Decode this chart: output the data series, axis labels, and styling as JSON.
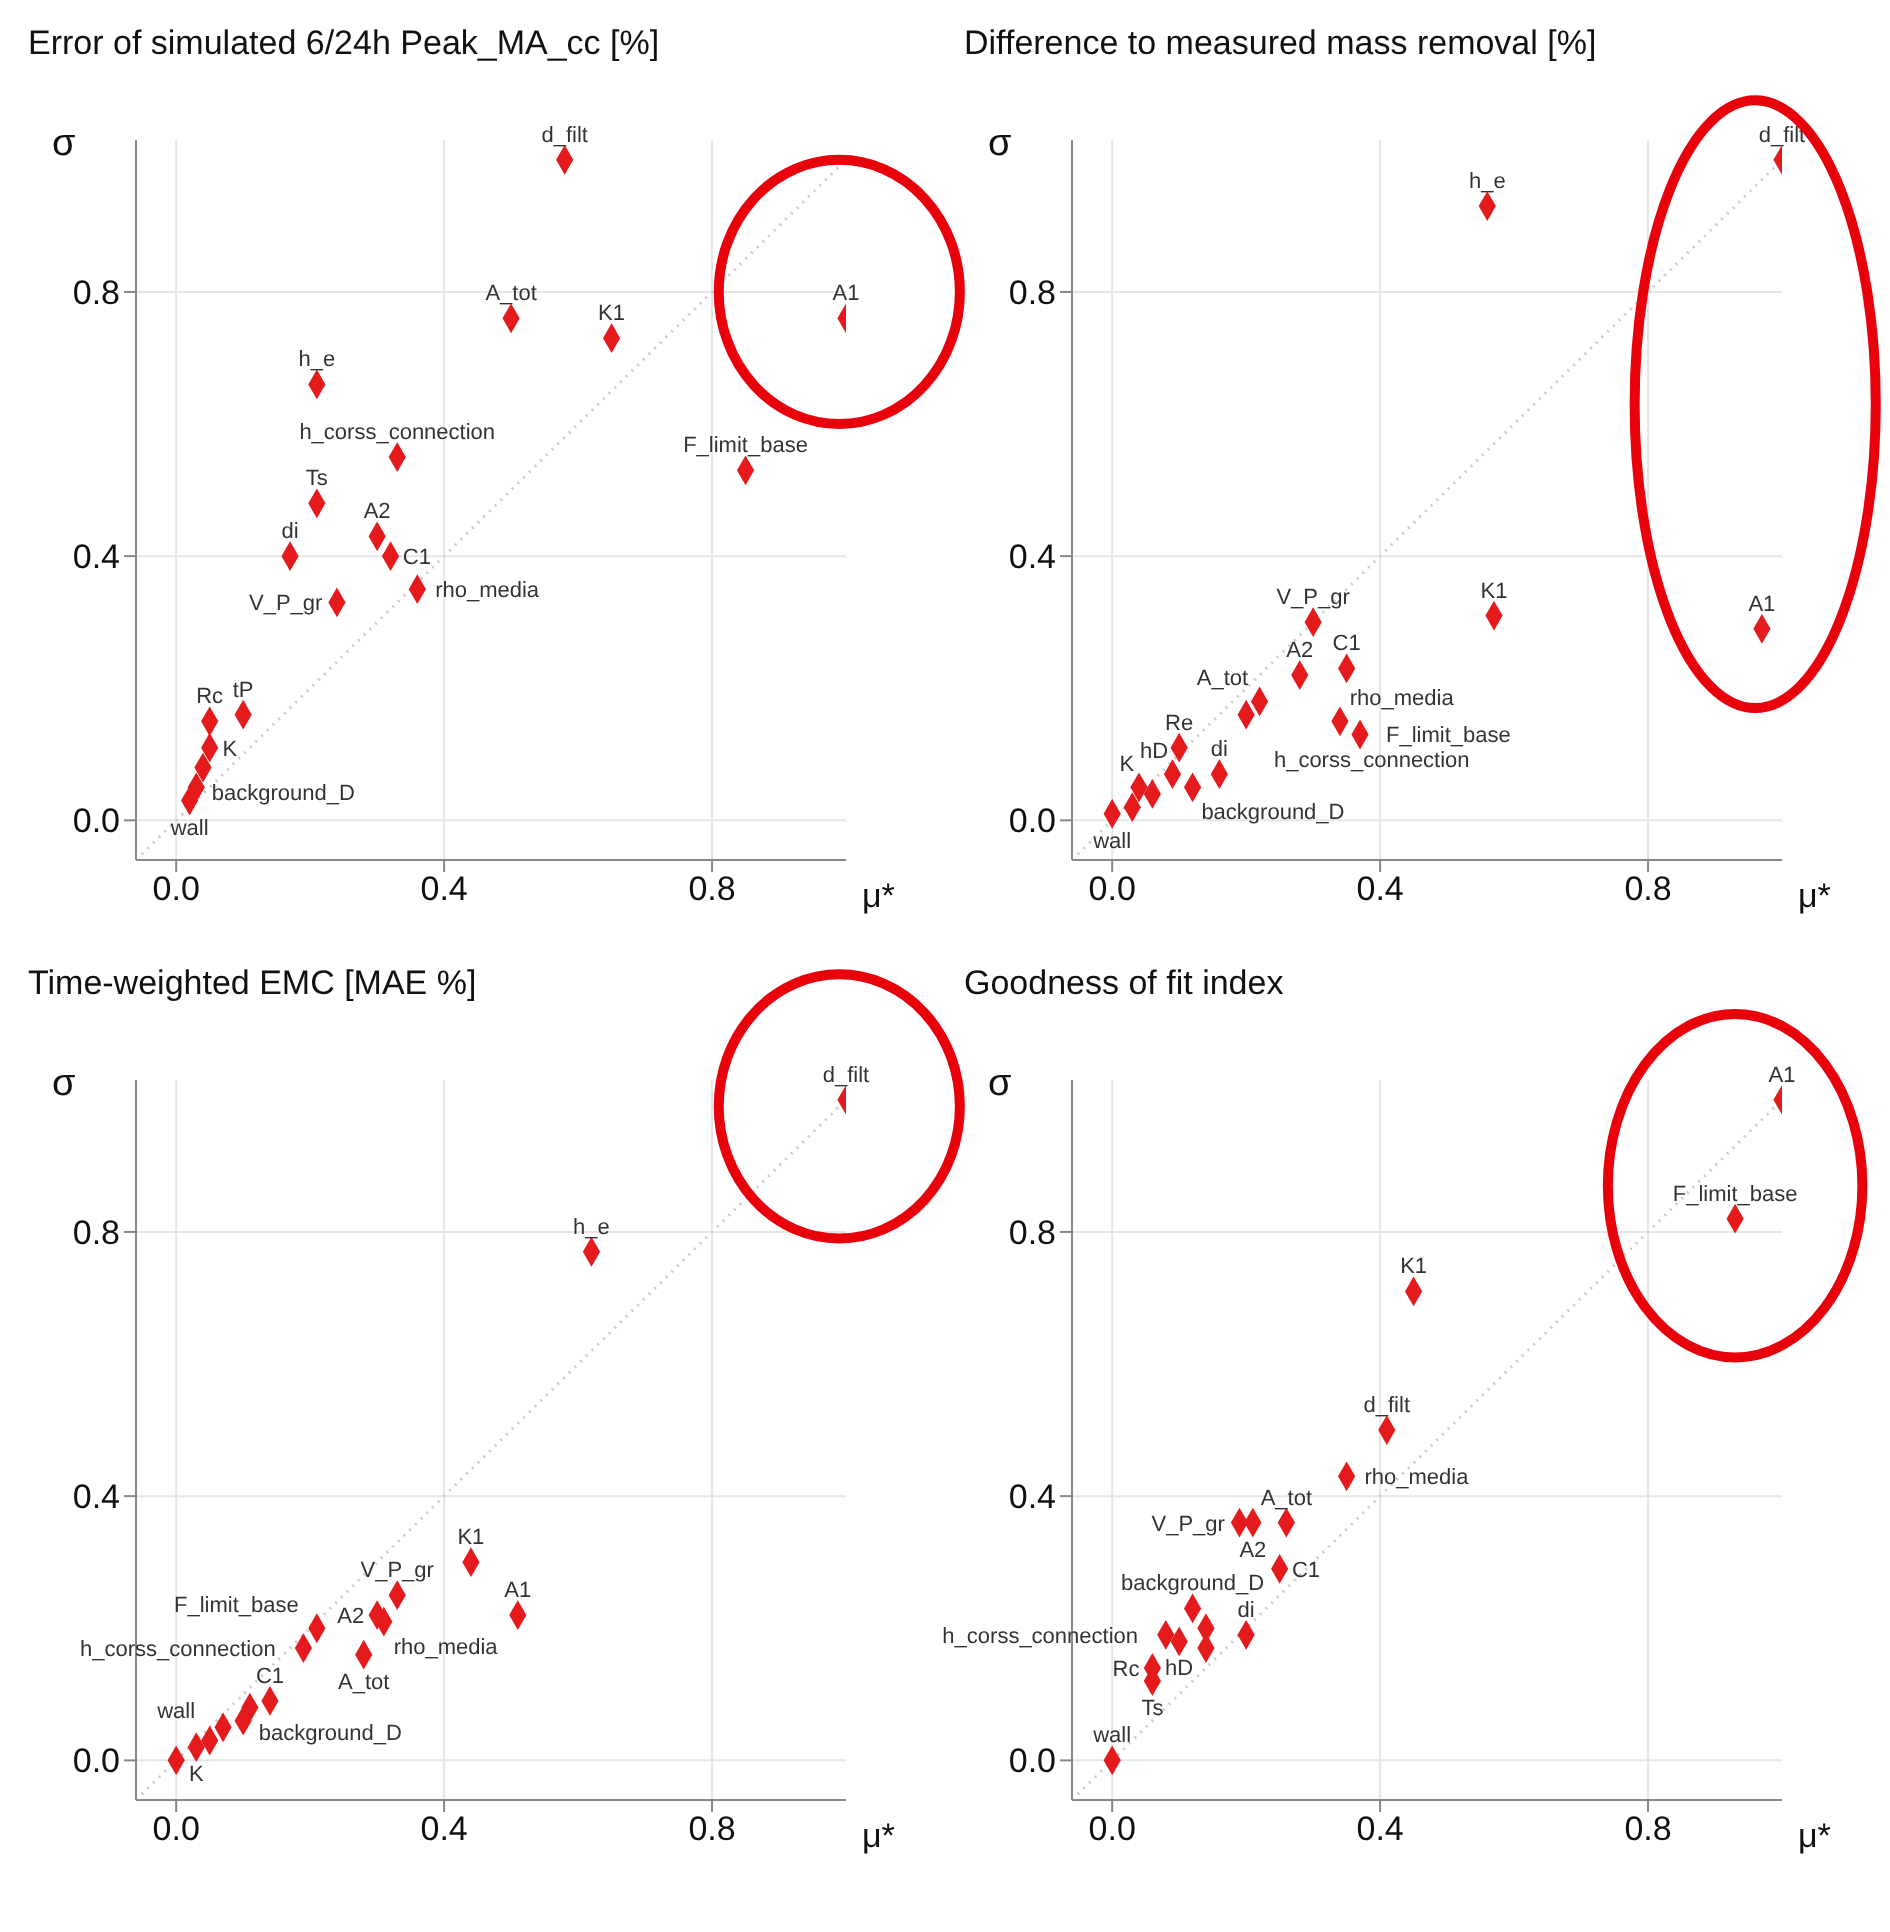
{
  "chart_data": [
    {
      "type": "scatter",
      "title": "Error of simulated 6/24h Peak_MA_cc [%]",
      "xlabel": "μ*",
      "ylabel": "σ",
      "xlim": [
        -0.06,
        1.0
      ],
      "ylim": [
        -0.06,
        1.03
      ],
      "xticks": [
        {
          "value": 0,
          "label": "0.0"
        },
        {
          "value": 0.4,
          "label": "0.4"
        },
        {
          "value": 0.8,
          "label": "0.8"
        }
      ],
      "yticks": [
        {
          "value": 0,
          "label": "0.0"
        },
        {
          "value": 0.4,
          "label": "0.4"
        },
        {
          "value": 0.8,
          "label": "0.8"
        }
      ],
      "grid": true,
      "marker": "diamond",
      "series": [
        {
          "type": "scatter",
          "color": "#e41a1c",
          "x": [
            0.58,
            0.5,
            0.65,
            1.0,
            0.85,
            0.21,
            0.33,
            0.21,
            0.3,
            0.32,
            0.17,
            0.36,
            0.24,
            0.05,
            0.1,
            0.05,
            0.04,
            0.03,
            0.02
          ],
          "values": [
            1.0,
            0.76,
            0.73,
            0.76,
            0.53,
            0.66,
            0.55,
            0.48,
            0.43,
            0.4,
            0.4,
            0.35,
            0.33,
            0.15,
            0.16,
            0.11,
            0.08,
            0.05,
            0.03
          ]
        },
        {
          "type": "line",
          "color": "#cccccc",
          "line_style": "dotted",
          "marker": "none",
          "x": [
            -0.06,
            1.0
          ],
          "values": [
            -0.06,
            1.0
          ]
        }
      ],
      "annotations": [
        {
          "text": "d_filt",
          "x": 0.58,
          "y": 1.0
        },
        {
          "text": "A_tot",
          "x": 0.5,
          "y": 0.76
        },
        {
          "text": "K1",
          "x": 0.65,
          "y": 0.73
        },
        {
          "text": "A1",
          "x": 1.0,
          "y": 0.76
        },
        {
          "text": "F_limit_base",
          "x": 0.85,
          "y": 0.53
        },
        {
          "text": "h_e",
          "x": 0.21,
          "y": 0.66
        },
        {
          "text": "h_corss_connection",
          "x": 0.33,
          "y": 0.55
        },
        {
          "text": "Ts",
          "x": 0.21,
          "y": 0.48
        },
        {
          "text": "A2",
          "x": 0.3,
          "y": 0.43
        },
        {
          "text": "C1",
          "x": 0.32,
          "y": 0.4
        },
        {
          "text": "di",
          "x": 0.17,
          "y": 0.4
        },
        {
          "text": "rho_media",
          "x": 0.36,
          "y": 0.35
        },
        {
          "text": "V_P_gr",
          "x": 0.24,
          "y": 0.33
        },
        {
          "text": "Rc",
          "x": 0.05,
          "y": 0.15
        },
        {
          "text": "tP",
          "x": 0.1,
          "y": 0.16
        },
        {
          "text": "K",
          "x": 0.05,
          "y": 0.11
        },
        {
          "text": "background_D",
          "x": 0.04,
          "y": 0.08
        },
        {
          "text": "wall",
          "x": 0.02,
          "y": 0.03
        }
      ]
    },
    {
      "type": "scatter",
      "title": "Difference to measured mass removal [%]",
      "xlabel": "μ*",
      "ylabel": "σ",
      "xlim": [
        -0.06,
        1.0
      ],
      "ylim": [
        -0.06,
        1.03
      ],
      "xticks": [
        {
          "value": 0,
          "label": "0.0"
        },
        {
          "value": 0.4,
          "label": "0.4"
        },
        {
          "value": 0.8,
          "label": "0.8"
        }
      ],
      "yticks": [
        {
          "value": 0,
          "label": "0.0"
        },
        {
          "value": 0.4,
          "label": "0.4"
        },
        {
          "value": 0.8,
          "label": "0.8"
        }
      ],
      "grid": true,
      "marker": "diamond",
      "series": [
        {
          "type": "scatter",
          "color": "#e41a1c",
          "x": [
            1.0,
            0.56,
            0.57,
            0.97,
            0.3,
            0.35,
            0.28,
            0.22,
            0.2,
            0.34,
            0.37,
            0.1,
            0.16,
            0.09,
            0.12,
            0.06,
            0.04,
            0.03,
            0.0
          ],
          "values": [
            1.0,
            0.93,
            0.31,
            0.29,
            0.3,
            0.23,
            0.22,
            0.18,
            0.16,
            0.15,
            0.13,
            0.11,
            0.07,
            0.07,
            0.05,
            0.04,
            0.05,
            0.02,
            0.01
          ]
        },
        {
          "type": "line",
          "color": "#cccccc",
          "line_style": "dotted",
          "marker": "none",
          "x": [
            -0.06,
            1.0
          ],
          "values": [
            -0.06,
            1.0
          ]
        }
      ],
      "annotations": [
        {
          "text": "d_filt",
          "x": 1.0,
          "y": 1.0
        },
        {
          "text": "h_e",
          "x": 0.56,
          "y": 0.93
        },
        {
          "text": "K1",
          "x": 0.57,
          "y": 0.31
        },
        {
          "text": "A1",
          "x": 0.97,
          "y": 0.29
        },
        {
          "text": "V_P_gr",
          "x": 0.3,
          "y": 0.3
        },
        {
          "text": "C1",
          "x": 0.35,
          "y": 0.23
        },
        {
          "text": "A2",
          "x": 0.28,
          "y": 0.22
        },
        {
          "text": "A_tot",
          "x": 0.22,
          "y": 0.18
        },
        {
          "text": "h_corss_connection",
          "x": 0.2,
          "y": 0.16
        },
        {
          "text": "rho_media",
          "x": 0.34,
          "y": 0.15
        },
        {
          "text": "F_limit_base",
          "x": 0.37,
          "y": 0.13
        },
        {
          "text": "Re",
          "x": 0.1,
          "y": 0.11
        },
        {
          "text": "di",
          "x": 0.16,
          "y": 0.07
        },
        {
          "text": "hD",
          "x": 0.09,
          "y": 0.07
        },
        {
          "text": "background_D",
          "x": 0.12,
          "y": 0.05
        },
        {
          "text": "K",
          "x": 0.04,
          "y": 0.05
        },
        {
          "text": "wall",
          "x": 0.0,
          "y": 0.01
        }
      ]
    },
    {
      "type": "scatter",
      "title": "Time-weighted EMC [MAE %]",
      "xlabel": "μ*",
      "ylabel": "σ",
      "xlim": [
        -0.06,
        1.0
      ],
      "ylim": [
        -0.06,
        1.03
      ],
      "xticks": [
        {
          "value": 0,
          "label": "0.0"
        },
        {
          "value": 0.4,
          "label": "0.4"
        },
        {
          "value": 0.8,
          "label": "0.8"
        }
      ],
      "yticks": [
        {
          "value": 0,
          "label": "0.0"
        },
        {
          "value": 0.4,
          "label": "0.4"
        },
        {
          "value": 0.8,
          "label": "0.8"
        }
      ],
      "grid": true,
      "marker": "diamond",
      "series": [
        {
          "type": "scatter",
          "color": "#e41a1c",
          "x": [
            1.0,
            0.62,
            0.44,
            0.51,
            0.33,
            0.31,
            0.3,
            0.28,
            0.21,
            0.19,
            0.14,
            0.11,
            0.1,
            0.07,
            0.05,
            0.03,
            0.0
          ],
          "values": [
            1.0,
            0.77,
            0.3,
            0.22,
            0.25,
            0.21,
            0.22,
            0.16,
            0.2,
            0.17,
            0.09,
            0.08,
            0.06,
            0.05,
            0.03,
            0.02,
            0.0
          ]
        },
        {
          "type": "line",
          "color": "#cccccc",
          "line_style": "dotted",
          "marker": "none",
          "x": [
            -0.06,
            1.0
          ],
          "values": [
            -0.06,
            1.0
          ]
        }
      ],
      "annotations": [
        {
          "text": "d_filt",
          "x": 1.0,
          "y": 1.0
        },
        {
          "text": "h_e",
          "x": 0.62,
          "y": 0.77
        },
        {
          "text": "K1",
          "x": 0.44,
          "y": 0.3
        },
        {
          "text": "A1",
          "x": 0.51,
          "y": 0.22
        },
        {
          "text": "V_P_gr",
          "x": 0.33,
          "y": 0.25
        },
        {
          "text": "rho_media",
          "x": 0.31,
          "y": 0.21
        },
        {
          "text": "A2",
          "x": 0.3,
          "y": 0.22
        },
        {
          "text": "A_tot",
          "x": 0.28,
          "y": 0.16
        },
        {
          "text": "F_limit_base",
          "x": 0.21,
          "y": 0.2
        },
        {
          "text": "h_corss_connection",
          "x": 0.19,
          "y": 0.17
        },
        {
          "text": "C1",
          "x": 0.14,
          "y": 0.09
        },
        {
          "text": "background_D",
          "x": 0.11,
          "y": 0.08
        },
        {
          "text": "K",
          "x": 0.03,
          "y": 0.02
        },
        {
          "text": "wall",
          "x": 0.0,
          "y": 0.0
        }
      ]
    },
    {
      "type": "scatter",
      "title": "Goodness of fit index",
      "xlabel": "μ*",
      "ylabel": "σ",
      "xlim": [
        -0.06,
        1.0
      ],
      "ylim": [
        -0.06,
        1.03
      ],
      "xticks": [
        {
          "value": 0,
          "label": "0.0"
        },
        {
          "value": 0.4,
          "label": "0.4"
        },
        {
          "value": 0.8,
          "label": "0.8"
        }
      ],
      "yticks": [
        {
          "value": 0,
          "label": "0.0"
        },
        {
          "value": 0.4,
          "label": "0.4"
        },
        {
          "value": 0.8,
          "label": "0.8"
        }
      ],
      "grid": true,
      "marker": "diamond",
      "series": [
        {
          "type": "scatter",
          "color": "#e41a1c",
          "x": [
            1.0,
            0.93,
            0.45,
            0.41,
            0.35,
            0.26,
            0.21,
            0.19,
            0.25,
            0.12,
            0.2,
            0.14,
            0.14,
            0.1,
            0.08,
            0.06,
            0.06,
            0.0
          ],
          "values": [
            1.0,
            0.82,
            0.71,
            0.5,
            0.43,
            0.36,
            0.36,
            0.36,
            0.29,
            0.23,
            0.19,
            0.2,
            0.17,
            0.18,
            0.19,
            0.14,
            0.12,
            0.0
          ]
        },
        {
          "type": "line",
          "color": "#cccccc",
          "line_style": "dotted",
          "marker": "none",
          "x": [
            -0.06,
            1.0
          ],
          "values": [
            -0.06,
            1.0
          ]
        }
      ],
      "annotations": [
        {
          "text": "A1",
          "x": 1.0,
          "y": 1.0
        },
        {
          "text": "F_limit_base",
          "x": 0.93,
          "y": 0.82
        },
        {
          "text": "K1",
          "x": 0.45,
          "y": 0.71
        },
        {
          "text": "d_filt",
          "x": 0.41,
          "y": 0.5
        },
        {
          "text": "rho_media",
          "x": 0.35,
          "y": 0.43
        },
        {
          "text": "A_tot",
          "x": 0.26,
          "y": 0.36
        },
        {
          "text": "A2",
          "x": 0.21,
          "y": 0.36
        },
        {
          "text": "V_P_gr",
          "x": 0.19,
          "y": 0.36
        },
        {
          "text": "C1",
          "x": 0.25,
          "y": 0.29
        },
        {
          "text": "background_D",
          "x": 0.12,
          "y": 0.23
        },
        {
          "text": "di",
          "x": 0.2,
          "y": 0.19
        },
        {
          "text": "hD",
          "x": 0.1,
          "y": 0.18
        },
        {
          "text": "h_corss_connection",
          "x": 0.08,
          "y": 0.19
        },
        {
          "text": "Rc",
          "x": 0.06,
          "y": 0.14
        },
        {
          "text": "Ts",
          "x": 0.06,
          "y": 0.12
        },
        {
          "text": "wall",
          "x": 0.0,
          "y": 0.0
        }
      ]
    }
  ]
}
